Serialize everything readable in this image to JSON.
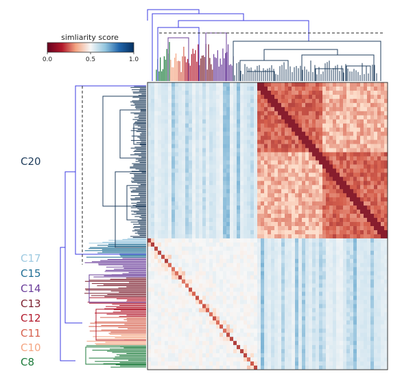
{
  "chart_data": {
    "type": "heatmap",
    "colorbar": {
      "title": "simliarity score",
      "min": 0.0,
      "max": 1.0,
      "ticks": [
        {
          "value": 0.0,
          "label": "0.0"
        },
        {
          "value": 0.5,
          "label": "0.5"
        },
        {
          "value": 1.0,
          "label": "1.0"
        }
      ],
      "colormap": [
        "#67001f",
        "#d6604d",
        "#fddbc7",
        "#f7f7f7",
        "#d1e5f0",
        "#4393c3",
        "#053061"
      ]
    },
    "clusters": [
      {
        "name": "C20",
        "color": "#1f3d5c",
        "share": 0.54
      },
      {
        "name": "C17",
        "color": "#9ecae1",
        "share": 0.02
      },
      {
        "name": "C15",
        "color": "#1f6e94",
        "share": 0.05
      },
      {
        "name": "C14",
        "color": "#6a3d9a",
        "share": 0.07
      },
      {
        "name": "C13",
        "color": "#7b1f2e",
        "share": 0.07
      },
      {
        "name": "C12",
        "color": "#b2182b",
        "share": 0.07
      },
      {
        "name": "C11",
        "color": "#d6604d",
        "share": 0.06
      },
      {
        "name": "C10",
        "color": "#f4a582",
        "share": 0.04
      },
      {
        "name": "C8",
        "color": "#1b7a3a",
        "share": 0.08
      }
    ],
    "legend_position": "top-left",
    "grid": false
  }
}
